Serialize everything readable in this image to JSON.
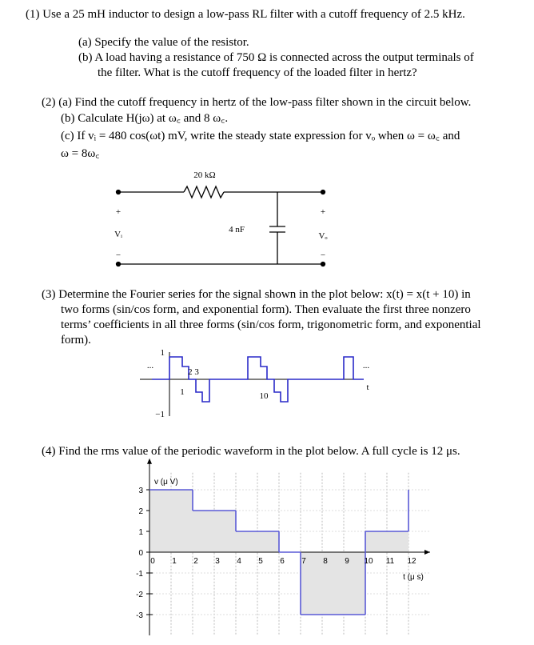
{
  "problem_1": {
    "lines": [
      "(1) Use a 25 mH inductor to design a low-pass RL filter with a cutoff frequency of 2.5 kHz.",
      "(a) Specify the value of the resistor.",
      "(b) A load having a resistance of 750 Ω is connected across the output terminals of",
      "the filter. What is the cutoff frequency of the loaded filter in hertz?"
    ]
  },
  "problem_2": {
    "lines": [
      "(2) (a) Find the cutoff frequency in hertz of the low-pass filter shown in the circuit below.",
      "(b) Calculate H(jω) at ω꜀ and 8 ω꜀.",
      "(c) If vᵢ = 480 cos(ωt) mV, write the steady state expression for vₒ when ω = ω꜀ and",
      "ω = 8ω꜀"
    ]
  },
  "circuit": {
    "resistor": "20 kΩ",
    "capacitor": "4 nF",
    "input_plus": "+",
    "input": "Vᵢ",
    "input_minus": "−",
    "output_plus": "+",
    "output": "Vₒ",
    "output_minus": "−"
  },
  "problem_3": {
    "lines": [
      "(3) Determine the Fourier series for the signal shown in the plot below: x(t) = x(t + 10) in",
      "two forms (sin/cos form, and exponential form). Then evaluate the first three nonzero",
      "terms’ coefficients in all three forms (sin/cos form, trigonometric form, and exponential",
      "form)."
    ]
  },
  "signal_plot": {
    "y_top": "1",
    "y_bottom": "−1",
    "dots_left": "...",
    "dots_right": "...",
    "ticks_23": "2 3",
    "tick_1": "1",
    "tick_10": "10",
    "t": "t"
  },
  "problem_4": {
    "lines": [
      "(4) Find the rms value of the periodic waveform in the plot below. A full cycle is 12 μs."
    ]
  },
  "waveform": {
    "y_label": "v (μ V)",
    "x_label": "t (μ s)",
    "xlim": [
      0,
      13
    ],
    "ylim": [
      -4,
      4.2
    ],
    "xticks": [
      0,
      1,
      2,
      3,
      4,
      5,
      6,
      7,
      8,
      9,
      10,
      11,
      12
    ],
    "yticks": [
      -3,
      -2,
      -1,
      0,
      1,
      2,
      3
    ],
    "color": "#5a5ad6",
    "segments": [
      {
        "x0": 0,
        "x1": 2,
        "v": 3
      },
      {
        "x0": 2,
        "x1": 4,
        "v": 2
      },
      {
        "x0": 4,
        "x1": 6,
        "v": 1
      },
      {
        "x0": 6,
        "x1": 7,
        "v": 0
      },
      {
        "x0": 7,
        "x1": 10,
        "v": -3
      },
      {
        "x0": 10,
        "x1": 12,
        "v": 1
      }
    ]
  }
}
